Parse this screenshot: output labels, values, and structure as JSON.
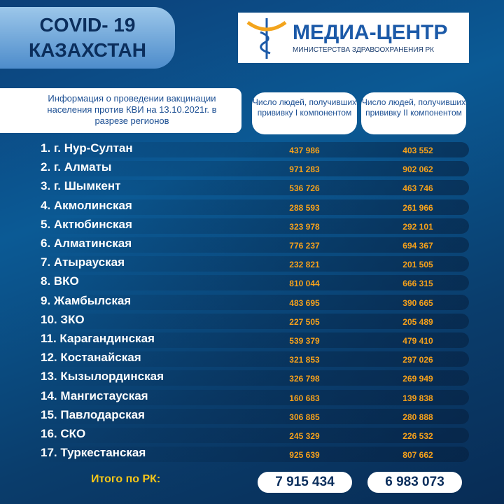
{
  "header": {
    "badge": [
      "COVID- 19",
      "КАЗАХСТАН"
    ],
    "logo_title": "МЕДИА-ЦЕНТР",
    "logo_subtitle": "МИНИСТЕРСТВА ЗДРАВООХРАНЕНИЯ РК"
  },
  "table": {
    "caption": "Информация о проведении вакцинации населения против КВИ на 13.10.2021г. в разрезе регионов",
    "columns": [
      "Число людей, получивших прививку I компонентом",
      "Число людей, получивших прививку II компонентом"
    ],
    "rows": [
      [
        "1. г. Нур-Султан",
        "437 986",
        "403 552"
      ],
      [
        "2. г. Алматы",
        "971 283",
        "902 062"
      ],
      [
        "3. г. Шымкент",
        "536 726",
        "463 746"
      ],
      [
        "4. Акмолинская",
        "288 593",
        "261 966"
      ],
      [
        "5. Актюбинская",
        "323 978",
        "292 101"
      ],
      [
        "6. Алматинская",
        "776 237",
        "694 367"
      ],
      [
        "7. Атырауская",
        "232 821",
        "201 505"
      ],
      [
        "8. ВКО",
        "810 044",
        "666 315"
      ],
      [
        "9. Жамбылская",
        "483 695",
        "390 665"
      ],
      [
        "10. ЗКО",
        "227 505",
        "205 489"
      ],
      [
        "11. Карагандинская",
        "539 379",
        "479 410"
      ],
      [
        "12. Костанайская",
        "321 853",
        "297 026"
      ],
      [
        "13. Кызылординская",
        "326 798",
        "269 949"
      ],
      [
        "14. Мангистауская",
        "160 683",
        "139 838"
      ],
      [
        "15. Павлодарская",
        "306 885",
        "280 888"
      ],
      [
        "16. СКО",
        "245 329",
        "226 532"
      ],
      [
        "17. Туркестанская",
        "925 639",
        "807 662"
      ]
    ],
    "total": [
      "Итого по РК:",
      "7 915 434",
      "6 983 073"
    ]
  }
}
